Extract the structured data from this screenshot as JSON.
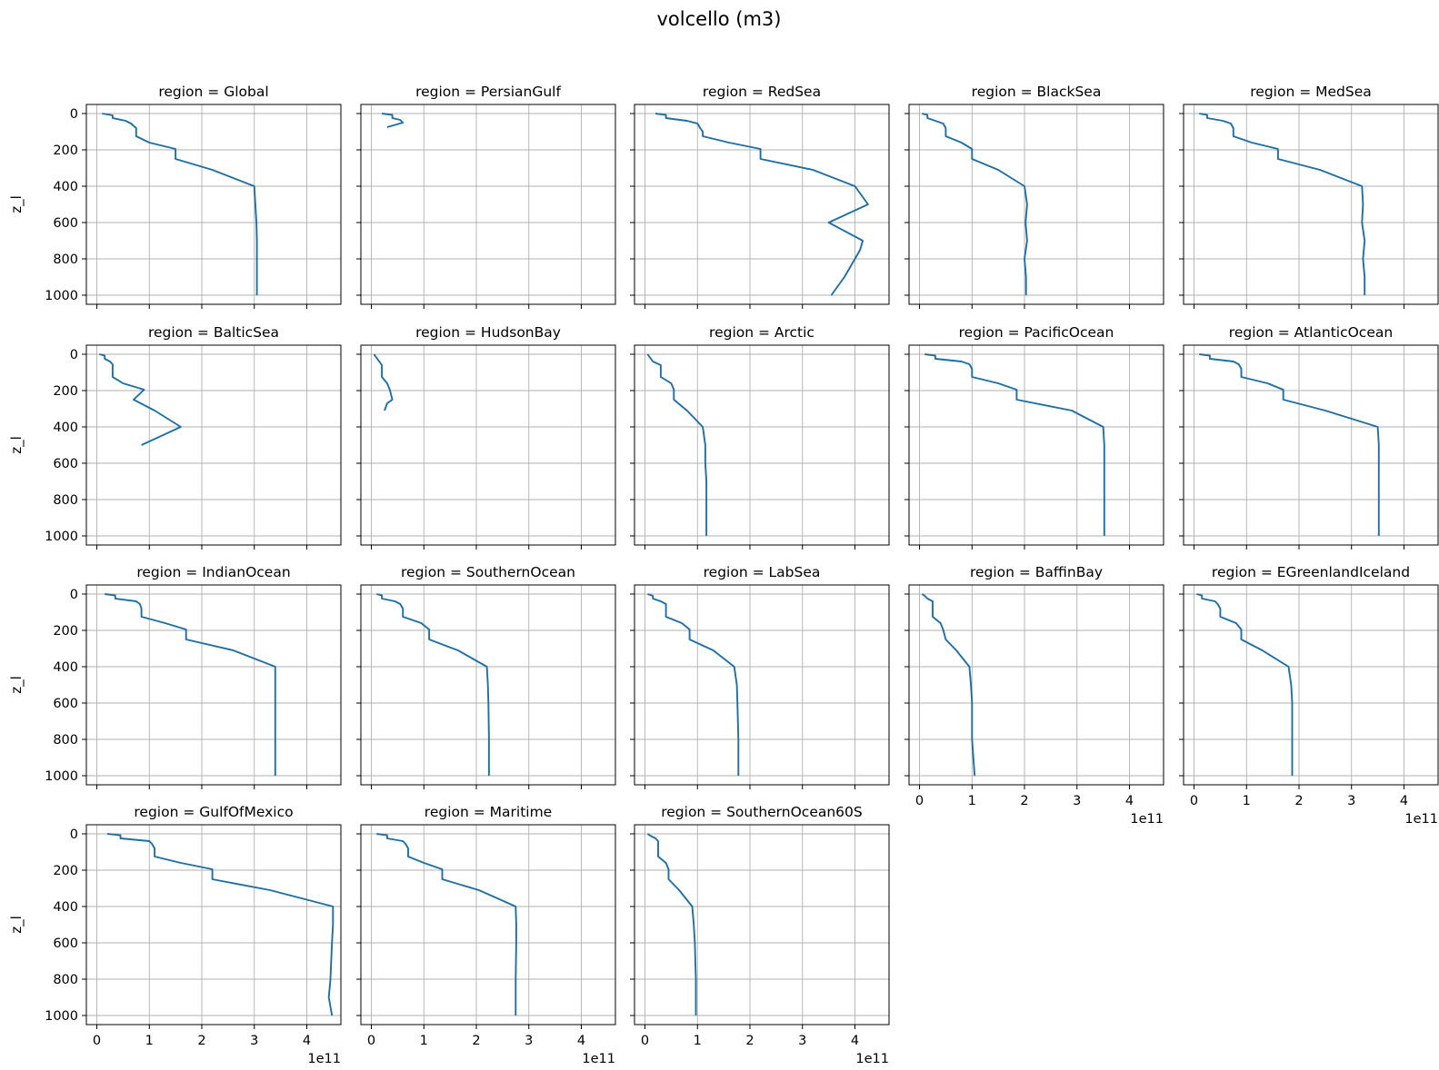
{
  "chart_data": {
    "type": "line",
    "title": "volcello (m3)",
    "orientation": "vertical-profile",
    "xlim": [
      -0.2,
      4.65
    ],
    "x_ticks": [
      0,
      1,
      2,
      3,
      4
    ],
    "x_offset_label": "1e11",
    "ylim": [
      1050,
      -50
    ],
    "y_ticks": [
      0,
      200,
      400,
      600,
      800,
      1000
    ],
    "ylabel": "z_l",
    "grid": true,
    "layout": {
      "rows": 4,
      "cols": 5
    },
    "panels": [
      {
        "title": "region = Global",
        "x": [
          0.1,
          0.3,
          0.3,
          0.55,
          0.65,
          0.75,
          0.75,
          1.0,
          1.5,
          1.5,
          2.2,
          3.0,
          3.02,
          3.04,
          3.05,
          3.05,
          3.05
        ],
        "y": [
          0,
          10,
          25,
          40,
          55,
          80,
          125,
          160,
          195,
          250,
          310,
          400,
          500,
          600,
          700,
          800,
          1000
        ]
      },
      {
        "title": "region = PersianGulf",
        "x": [
          0.2,
          0.4,
          0.4,
          0.55,
          0.6,
          0.3
        ],
        "y": [
          0,
          8,
          25,
          35,
          50,
          75
        ]
      },
      {
        "title": "region = RedSea",
        "x": [
          0.2,
          0.4,
          0.4,
          0.8,
          1.0,
          1.05,
          1.1,
          1.1,
          1.6,
          2.2,
          2.2,
          3.2,
          4.0,
          4.25,
          3.5,
          4.15,
          4.1,
          4.0,
          3.8,
          3.55
        ],
        "y": [
          0,
          8,
          25,
          40,
          55,
          80,
          100,
          125,
          160,
          195,
          250,
          310,
          400,
          500,
          600,
          700,
          750,
          800,
          900,
          1000
        ]
      },
      {
        "title": "region = BlackSea",
        "x": [
          0.05,
          0.15,
          0.15,
          0.3,
          0.45,
          0.5,
          0.5,
          0.8,
          1.0,
          1.0,
          1.5,
          2.0,
          2.05,
          2.02,
          2.05,
          2.0,
          2.03,
          2.03
        ],
        "y": [
          0,
          8,
          25,
          40,
          55,
          80,
          125,
          160,
          195,
          250,
          310,
          400,
          500,
          600,
          700,
          800,
          900,
          1000
        ]
      },
      {
        "title": "region = MedSea",
        "x": [
          0.1,
          0.25,
          0.25,
          0.55,
          0.7,
          0.75,
          0.75,
          1.1,
          1.6,
          1.6,
          2.4,
          3.2,
          3.22,
          3.2,
          3.25,
          3.22,
          3.25,
          3.25
        ],
        "y": [
          0,
          8,
          25,
          40,
          55,
          80,
          125,
          160,
          195,
          250,
          310,
          400,
          500,
          600,
          700,
          800,
          900,
          1000
        ]
      },
      {
        "title": "region = BalticSea",
        "x": [
          0.05,
          0.15,
          0.15,
          0.25,
          0.3,
          0.3,
          0.5,
          0.9,
          0.7,
          1.1,
          1.6,
          0.85
        ],
        "y": [
          0,
          8,
          25,
          40,
          55,
          125,
          160,
          195,
          250,
          310,
          400,
          500
        ]
      },
      {
        "title": "region = HudsonBay",
        "x": [
          0.05,
          0.1,
          0.15,
          0.2,
          0.2,
          0.3,
          0.35,
          0.4,
          0.3,
          0.25
        ],
        "y": [
          0,
          20,
          40,
          60,
          125,
          160,
          195,
          250,
          270,
          310
        ]
      },
      {
        "title": "region = Arctic",
        "x": [
          0.05,
          0.1,
          0.15,
          0.3,
          0.3,
          0.5,
          0.55,
          0.55,
          0.8,
          1.1,
          1.15,
          1.15,
          1.17,
          1.17,
          1.17
        ],
        "y": [
          0,
          20,
          40,
          60,
          125,
          160,
          195,
          250,
          310,
          400,
          500,
          600,
          700,
          800,
          1000
        ]
      },
      {
        "title": "region = PacificOcean",
        "x": [
          0.1,
          0.3,
          0.3,
          0.8,
          0.95,
          1.0,
          1.0,
          1.5,
          1.85,
          1.85,
          2.9,
          3.5,
          3.52,
          3.52,
          3.52,
          3.52
        ],
        "y": [
          0,
          8,
          25,
          40,
          55,
          80,
          125,
          160,
          195,
          250,
          310,
          400,
          500,
          600,
          800,
          1000
        ]
      },
      {
        "title": "region = AtlanticOcean",
        "x": [
          0.1,
          0.3,
          0.3,
          0.75,
          0.85,
          0.9,
          0.9,
          1.4,
          1.7,
          1.7,
          2.5,
          3.5,
          3.52,
          3.52,
          3.52,
          3.52
        ],
        "y": [
          0,
          8,
          25,
          40,
          55,
          80,
          125,
          160,
          195,
          250,
          310,
          400,
          500,
          600,
          800,
          1000
        ]
      },
      {
        "title": "region = IndianOcean",
        "x": [
          0.15,
          0.35,
          0.35,
          0.75,
          0.82,
          0.85,
          0.85,
          1.3,
          1.7,
          1.7,
          2.6,
          3.4,
          3.4,
          3.4,
          3.4,
          3.4
        ],
        "y": [
          0,
          8,
          25,
          40,
          55,
          80,
          125,
          160,
          195,
          250,
          310,
          400,
          500,
          600,
          800,
          1000
        ]
      },
      {
        "title": "region = SouthernOcean",
        "x": [
          0.1,
          0.2,
          0.2,
          0.45,
          0.55,
          0.6,
          0.6,
          0.95,
          1.1,
          1.1,
          1.65,
          2.2,
          2.22,
          2.23,
          2.24,
          2.24
        ],
        "y": [
          0,
          8,
          25,
          40,
          55,
          80,
          125,
          160,
          195,
          250,
          310,
          400,
          500,
          600,
          800,
          1000
        ]
      },
      {
        "title": "region = LabSea",
        "x": [
          0.05,
          0.15,
          0.15,
          0.3,
          0.4,
          0.4,
          0.7,
          0.85,
          0.85,
          1.3,
          1.7,
          1.75,
          1.76,
          1.78,
          1.78
        ],
        "y": [
          0,
          10,
          25,
          40,
          55,
          125,
          160,
          195,
          250,
          310,
          400,
          500,
          600,
          800,
          1000
        ]
      },
      {
        "title": "region = BaffinBay",
        "x": [
          0.05,
          0.1,
          0.15,
          0.25,
          0.25,
          0.4,
          0.45,
          0.5,
          0.7,
          0.95,
          0.98,
          1.0,
          1.0,
          1.05
        ],
        "y": [
          0,
          10,
          25,
          40,
          125,
          160,
          195,
          250,
          310,
          400,
          500,
          600,
          800,
          1000
        ]
      },
      {
        "title": "region = EGreenlandIceland",
        "x": [
          0.05,
          0.15,
          0.15,
          0.4,
          0.45,
          0.5,
          0.5,
          0.8,
          0.9,
          0.9,
          1.3,
          1.8,
          1.85,
          1.87,
          1.87,
          1.87
        ],
        "y": [
          0,
          8,
          25,
          40,
          55,
          80,
          125,
          160,
          195,
          250,
          310,
          400,
          500,
          600,
          800,
          1000
        ]
      },
      {
        "title": "region = GulfOfMexico",
        "x": [
          0.2,
          0.45,
          0.45,
          1.0,
          1.05,
          1.1,
          1.1,
          1.6,
          2.2,
          2.2,
          3.3,
          4.5,
          4.5,
          4.48,
          4.45,
          4.42,
          4.48
        ],
        "y": [
          0,
          8,
          25,
          40,
          55,
          80,
          125,
          160,
          195,
          250,
          310,
          400,
          500,
          600,
          800,
          900,
          1000
        ]
      },
      {
        "title": "region = Maritime",
        "x": [
          0.1,
          0.3,
          0.3,
          0.6,
          0.65,
          0.7,
          0.7,
          1.0,
          1.35,
          1.35,
          2.05,
          2.75,
          2.76,
          2.76,
          2.75,
          2.75
        ],
        "y": [
          0,
          8,
          25,
          40,
          55,
          80,
          125,
          160,
          195,
          250,
          310,
          400,
          500,
          600,
          800,
          1000
        ]
      },
      {
        "title": "region = SouthernOcean60S",
        "x": [
          0.05,
          0.1,
          0.2,
          0.25,
          0.25,
          0.4,
          0.45,
          0.45,
          0.65,
          0.9,
          0.93,
          0.95,
          0.97,
          0.97
        ],
        "y": [
          0,
          10,
          25,
          40,
          125,
          160,
          195,
          250,
          310,
          400,
          500,
          600,
          800,
          1000
        ]
      }
    ]
  }
}
